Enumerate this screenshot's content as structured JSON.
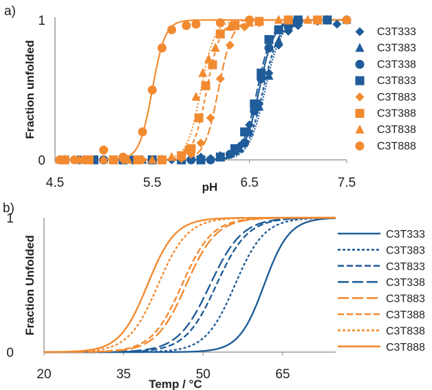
{
  "chart_data": [
    {
      "panel_label": "a)",
      "type": "scatter",
      "xlabel": "pH",
      "ylabel": "Fraction unfolded",
      "xlim": [
        4.5,
        7.5
      ],
      "ylim": [
        0,
        1
      ],
      "x_ticks": [
        "4.5",
        "5.5",
        "6.5",
        "7.5"
      ],
      "y_ticks": [
        "0",
        "1"
      ],
      "legend_position": "right",
      "grid": false,
      "series": [
        {
          "name": "C3T333",
          "color": "#1f5c99",
          "marker": "diamond",
          "dash": "2,2",
          "midpoint": 6.66,
          "slope": 12,
          "points": [
            [
              4.55,
              0
            ],
            [
              4.7,
              0
            ],
            [
              4.9,
              0
            ],
            [
              5.1,
              0
            ],
            [
              5.3,
              0
            ],
            [
              5.5,
              0
            ],
            [
              5.7,
              0
            ],
            [
              5.9,
              0
            ],
            [
              6.0,
              0.02
            ],
            [
              6.1,
              0.01
            ],
            [
              6.2,
              0.03
            ],
            [
              6.3,
              0.04
            ],
            [
              6.4,
              0.1
            ],
            [
              6.5,
              0.25
            ],
            [
              6.6,
              0.4
            ],
            [
              6.7,
              0.62
            ],
            [
              6.8,
              0.82
            ],
            [
              6.9,
              0.92
            ],
            [
              7.0,
              0.96
            ],
            [
              7.2,
              0.99
            ],
            [
              7.4,
              0.97
            ]
          ]
        },
        {
          "name": "C3T383",
          "color": "#1f5c99",
          "marker": "triangle",
          "dash": "5,3",
          "midpoint": 6.64,
          "slope": 12,
          "points": [
            [
              4.6,
              0
            ],
            [
              4.8,
              0
            ],
            [
              5.0,
              0
            ],
            [
              5.2,
              0
            ],
            [
              5.4,
              0
            ],
            [
              5.6,
              0
            ],
            [
              5.8,
              0
            ],
            [
              6.0,
              0
            ],
            [
              6.2,
              0.02
            ],
            [
              6.4,
              0.08
            ],
            [
              6.5,
              0.2
            ],
            [
              6.6,
              0.38
            ],
            [
              6.7,
              0.6
            ],
            [
              6.8,
              0.85
            ],
            [
              6.9,
              0.95
            ],
            [
              7.0,
              0.98
            ],
            [
              7.3,
              1
            ],
            [
              7.5,
              1
            ]
          ]
        },
        {
          "name": "C3T338",
          "color": "#1f5c99",
          "marker": "circle",
          "dash": "",
          "midpoint": 6.6,
          "slope": 13,
          "points": [
            [
              4.55,
              0
            ],
            [
              4.75,
              0
            ],
            [
              5.0,
              0
            ],
            [
              5.3,
              0
            ],
            [
              5.6,
              0
            ],
            [
              5.9,
              0
            ],
            [
              6.1,
              0
            ],
            [
              6.3,
              0.04
            ],
            [
              6.45,
              0.12
            ],
            [
              6.55,
              0.35
            ],
            [
              6.62,
              0.58
            ],
            [
              6.7,
              0.8
            ],
            [
              6.8,
              0.93
            ],
            [
              6.95,
              0.98
            ],
            [
              7.2,
              1
            ],
            [
              7.5,
              1
            ]
          ]
        },
        {
          "name": "C3T833",
          "color": "#1f5c99",
          "marker": "square",
          "dash": "12,4",
          "midpoint": 6.58,
          "slope": 13,
          "points": [
            [
              4.6,
              0
            ],
            [
              4.9,
              0
            ],
            [
              5.2,
              0
            ],
            [
              5.5,
              0
            ],
            [
              5.8,
              0
            ],
            [
              6.0,
              0
            ],
            [
              6.2,
              0.02
            ],
            [
              6.35,
              0.08
            ],
            [
              6.45,
              0.2
            ],
            [
              6.55,
              0.4
            ],
            [
              6.62,
              0.62
            ],
            [
              6.7,
              0.86
            ],
            [
              6.8,
              0.93
            ],
            [
              6.9,
              0.97
            ],
            [
              7.0,
              1
            ],
            [
              7.3,
              1
            ]
          ]
        },
        {
          "name": "C3T883",
          "color": "#f28a30",
          "marker": "diamond",
          "dash": "12,4",
          "midpoint": 6.18,
          "slope": 14,
          "points": [
            [
              4.6,
              0
            ],
            [
              4.8,
              0
            ],
            [
              5.0,
              0
            ],
            [
              5.2,
              0
            ],
            [
              5.4,
              0
            ],
            [
              5.6,
              0
            ],
            [
              5.8,
              0.01
            ],
            [
              5.9,
              0.04
            ],
            [
              6.0,
              0.12
            ],
            [
              6.1,
              0.3
            ],
            [
              6.2,
              0.58
            ],
            [
              6.3,
              0.82
            ],
            [
              6.45,
              0.95
            ],
            [
              6.6,
              0.98
            ],
            [
              6.9,
              1
            ],
            [
              7.2,
              1
            ]
          ]
        },
        {
          "name": "C3T388",
          "color": "#f28a30",
          "marker": "square",
          "dash": "6,4",
          "midpoint": 6.06,
          "slope": 14,
          "points": [
            [
              4.6,
              0
            ],
            [
              4.85,
              0
            ],
            [
              5.1,
              0
            ],
            [
              5.35,
              0
            ],
            [
              5.6,
              0
            ],
            [
              5.8,
              0.03
            ],
            [
              5.9,
              0.08
            ],
            [
              5.98,
              0.3
            ],
            [
              6.05,
              0.53
            ],
            [
              6.12,
              0.68
            ],
            [
              6.2,
              0.9
            ],
            [
              6.35,
              0.96
            ],
            [
              6.6,
              0.99
            ],
            [
              6.9,
              1
            ],
            [
              7.2,
              1
            ]
          ]
        },
        {
          "name": "C3T838",
          "color": "#f28a30",
          "marker": "triangle",
          "dash": "2,3",
          "midpoint": 6.0,
          "slope": 14,
          "points": [
            [
              4.55,
              0
            ],
            [
              4.75,
              0
            ],
            [
              5.0,
              0
            ],
            [
              5.25,
              0
            ],
            [
              5.5,
              0
            ],
            [
              5.7,
              0.02
            ],
            [
              5.85,
              0.07
            ],
            [
              5.95,
              0.45
            ],
            [
              6.02,
              0.62
            ],
            [
              6.08,
              0.72
            ],
            [
              6.15,
              0.8
            ],
            [
              6.3,
              0.95
            ],
            [
              6.5,
              0.98
            ],
            [
              6.8,
              1
            ],
            [
              7.1,
              1
            ]
          ]
        },
        {
          "name": "C3T888",
          "color": "#f28a30",
          "marker": "circle",
          "dash": "",
          "midpoint": 5.5,
          "slope": 15,
          "points": [
            [
              4.55,
              0
            ],
            [
              4.7,
              0
            ],
            [
              4.8,
              0
            ],
            [
              5.0,
              0.07
            ],
            [
              5.2,
              0.02
            ],
            [
              5.4,
              0.2
            ],
            [
              5.5,
              0.5
            ],
            [
              5.6,
              0.8
            ],
            [
              5.7,
              0.93
            ],
            [
              5.85,
              0.96
            ],
            [
              5.95,
              0.97
            ],
            [
              6.2,
              0.98
            ],
            [
              6.5,
              1
            ],
            [
              7.5,
              1
            ]
          ]
        }
      ]
    },
    {
      "panel_label": "b)",
      "type": "line",
      "xlabel": "Temp / °C",
      "ylabel": "Fraction Unfolded",
      "xlim": [
        20,
        75
      ],
      "ylim": [
        0,
        1
      ],
      "x_ticks": [
        "20",
        "35",
        "50",
        "65"
      ],
      "y_ticks": [
        "0",
        "1"
      ],
      "legend_position": "right",
      "grid": false,
      "series": [
        {
          "name": "C3T333",
          "color": "#1f5c99",
          "dash": "",
          "midpoint": 61.5,
          "slope": 0.42
        },
        {
          "name": "C3T383",
          "color": "#1f5c99",
          "dash": "4,3",
          "midpoint": 56.0,
          "slope": 0.36
        },
        {
          "name": "C3T833",
          "color": "#1f5c99",
          "dash": "9,4",
          "midpoint": 52.5,
          "slope": 0.34
        },
        {
          "name": "C3T338",
          "color": "#1f5c99",
          "dash": "16,5",
          "midpoint": 51.3,
          "slope": 0.33
        },
        {
          "name": "C3T883",
          "color": "#f28a30",
          "dash": "16,5",
          "midpoint": 46.8,
          "slope": 0.35
        },
        {
          "name": "C3T388",
          "color": "#f28a30",
          "dash": "9,4",
          "midpoint": 46.0,
          "slope": 0.35
        },
        {
          "name": "C3T838",
          "color": "#f28a30",
          "dash": "4,3",
          "midpoint": 41.5,
          "slope": 0.36
        },
        {
          "name": "C3T888",
          "color": "#f28a30",
          "dash": "",
          "midpoint": 39.5,
          "slope": 0.38
        }
      ]
    }
  ]
}
